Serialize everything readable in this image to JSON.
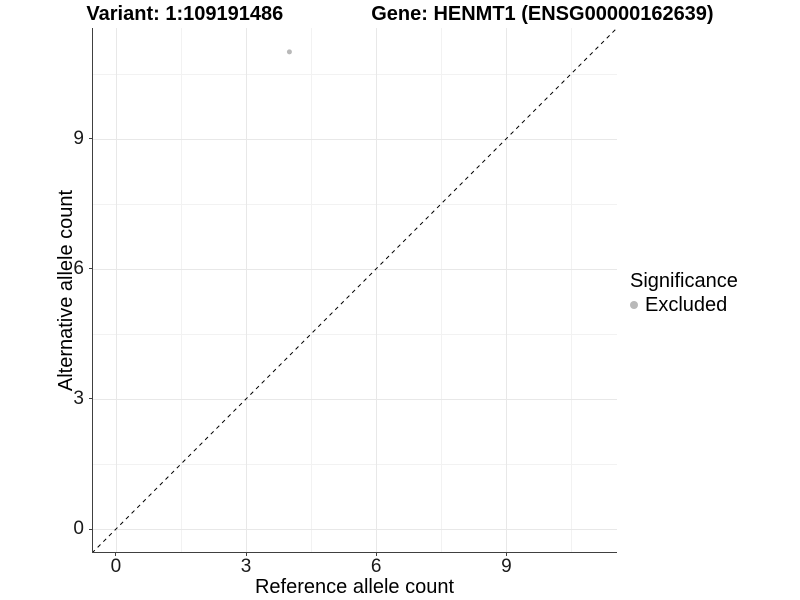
{
  "header": {
    "variant_title": "Variant: 1:109191486",
    "gene_title": "Gene: HENMT1 (ENSG00000162639)"
  },
  "chart_data": {
    "type": "scatter",
    "title": "Variant: 1:109191486   Gene: HENMT1 (ENSG00000162639)",
    "xlabel": "Reference allele count",
    "ylabel": "Alternative allele count",
    "xlim": [
      -0.55,
      11.55
    ],
    "ylim": [
      -0.55,
      11.55
    ],
    "x_ticks": [
      0,
      3,
      6,
      9
    ],
    "y_ticks": [
      0,
      3,
      6,
      9
    ],
    "x_minor_ticks": [
      1.5,
      4.5,
      7.5,
      10.5
    ],
    "y_minor_ticks": [
      1.5,
      4.5,
      7.5,
      10.5
    ],
    "grid": true,
    "series": [
      {
        "name": "Excluded",
        "color": "#b9b9b9",
        "points": [
          {
            "x": 4,
            "y": 11
          }
        ]
      }
    ],
    "reference_line": {
      "type": "identity",
      "style": "dashed",
      "color": "#000000"
    },
    "legend": {
      "title": "Significance",
      "position": "right",
      "entries": [
        {
          "label": "Excluded",
          "color": "#b9b9b9"
        }
      ]
    }
  },
  "colors": {
    "background": "#ffffff",
    "axis_line": "#404040",
    "grid_major": "#e8e8e8",
    "grid_minor": "#f2f2f2",
    "tick_text": "#1a1a1a",
    "point": "#b9b9b9"
  }
}
